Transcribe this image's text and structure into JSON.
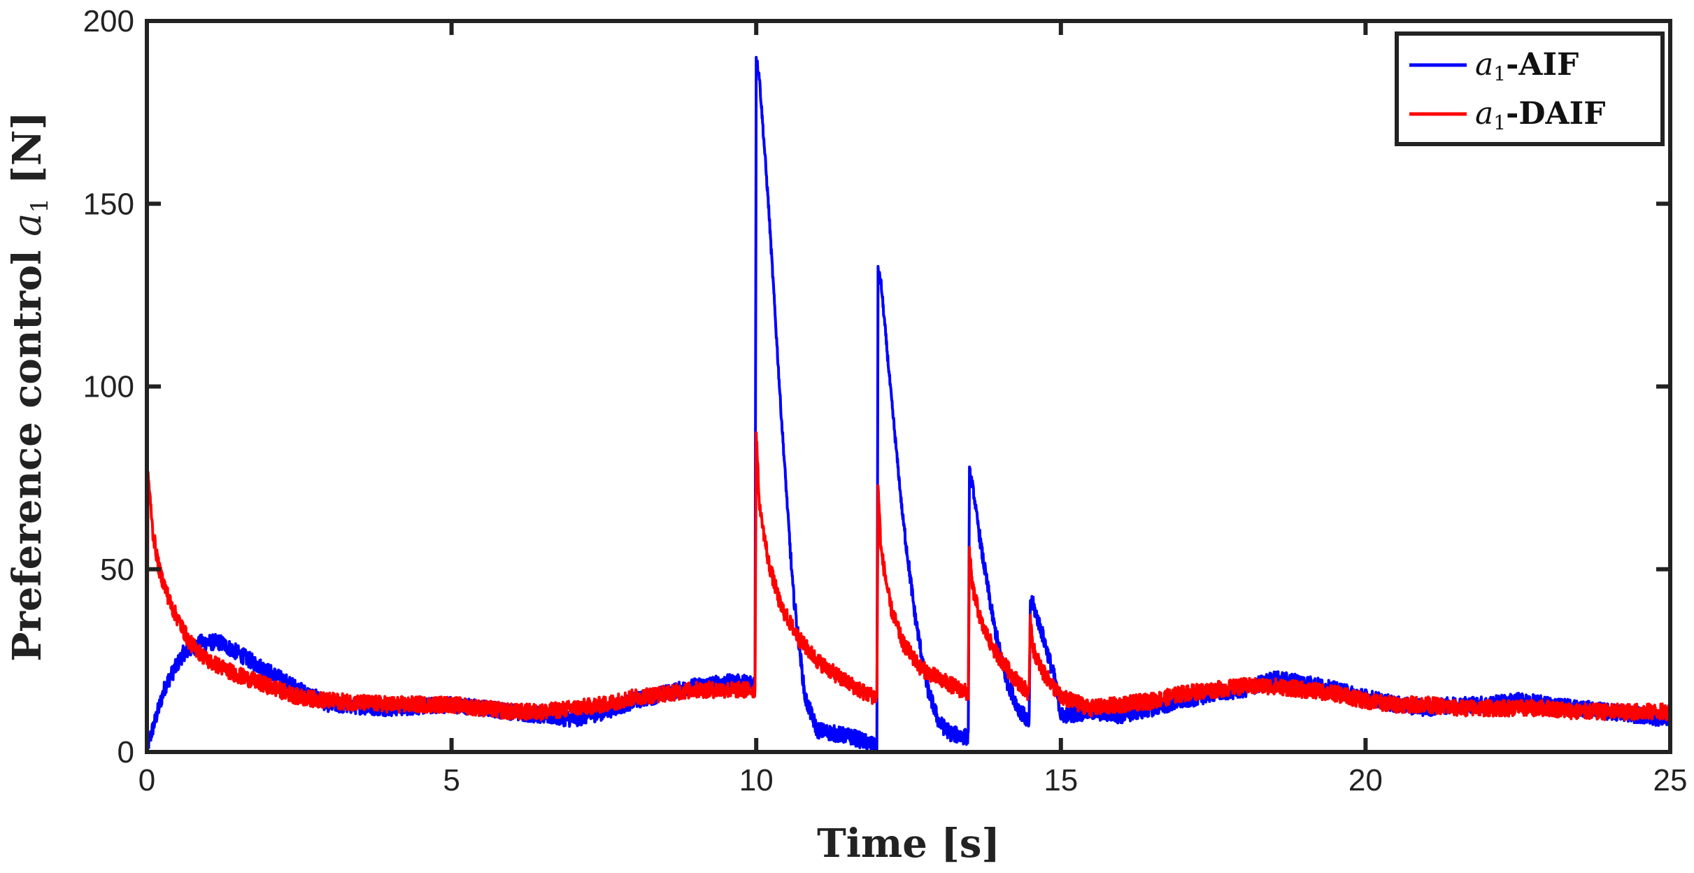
{
  "chart_data": {
    "type": "line",
    "title": "",
    "xlabel": "Time [s]",
    "ylabel_prefix": "Preference control ",
    "ylabel_var": "a",
    "ylabel_sub": "1",
    "ylabel_suffix": " [N]",
    "xlim": [
      0,
      25
    ],
    "ylim": [
      0,
      200
    ],
    "xticks": [
      0,
      5,
      10,
      15,
      20,
      25
    ],
    "yticks": [
      0,
      50,
      100,
      150,
      200
    ],
    "grid": false,
    "legend_position": "top-right",
    "noise_amplitude": 2.2,
    "series": [
      {
        "name_var": "a",
        "name_sub": "1",
        "name_suffix": "-AIF",
        "color": "#0000ff",
        "x": [
          0.0,
          0.02,
          0.3,
          0.6,
          0.9,
          1.2,
          1.5,
          2.0,
          2.5,
          3.0,
          4.0,
          5.0,
          5.5,
          6.0,
          6.5,
          7.0,
          7.5,
          8.0,
          8.5,
          9.0,
          9.5,
          9.98,
          10.0,
          10.05,
          10.2,
          10.4,
          10.6,
          10.8,
          11.0,
          11.3,
          11.6,
          11.9,
          11.98,
          12.0,
          12.05,
          12.2,
          12.4,
          12.6,
          12.8,
          13.0,
          13.2,
          13.48,
          13.5,
          13.55,
          13.7,
          13.9,
          14.1,
          14.3,
          14.48,
          14.5,
          14.55,
          14.7,
          14.9,
          15.0,
          15.5,
          16.0,
          16.5,
          17.0,
          17.5,
          18.0,
          18.5,
          19.0,
          19.5,
          20.0,
          20.5,
          21.0,
          21.5,
          22.0,
          22.5,
          23.0,
          23.5,
          24.0,
          24.5,
          25.0
        ],
        "y": [
          0,
          2,
          18,
          27,
          30,
          30,
          27,
          22,
          17,
          13,
          12,
          13,
          12,
          11,
          10,
          9,
          11,
          14,
          16,
          18,
          19,
          19,
          190,
          185,
          150,
          95,
          45,
          15,
          6,
          5,
          4,
          2,
          1,
          132,
          128,
          100,
          65,
          38,
          18,
          8,
          5,
          4,
          77,
          73,
          55,
          35,
          20,
          12,
          8,
          42,
          40,
          32,
          20,
          10,
          11,
          10,
          12,
          14,
          16,
          17,
          20,
          19,
          17,
          15,
          13,
          12,
          13,
          13,
          14,
          13,
          12,
          11,
          10,
          9
        ]
      },
      {
        "name_var": "a",
        "name_sub": "1",
        "name_suffix": "-DAIF",
        "color": "#ff0000",
        "x": [
          0.0,
          0.02,
          0.1,
          0.2,
          0.4,
          0.7,
          1.0,
          1.5,
          2.0,
          2.5,
          3.0,
          4.0,
          5.0,
          5.5,
          6.0,
          6.5,
          7.0,
          7.5,
          8.0,
          8.5,
          9.0,
          9.5,
          9.98,
          10.0,
          10.05,
          10.2,
          10.4,
          10.7,
          11.0,
          11.4,
          11.8,
          11.98,
          12.0,
          12.05,
          12.2,
          12.4,
          12.7,
          13.0,
          13.48,
          13.5,
          13.55,
          13.7,
          13.9,
          14.2,
          14.48,
          14.5,
          14.55,
          14.7,
          15.0,
          15.5,
          16.0,
          16.5,
          17.0,
          17.5,
          18.0,
          18.5,
          19.0,
          19.5,
          20.0,
          20.5,
          21.0,
          21.5,
          22.0,
          22.5,
          23.0,
          23.5,
          24.0,
          24.5,
          25.0
        ],
        "y": [
          0,
          76,
          60,
          50,
          40,
          30,
          25,
          21,
          18,
          15,
          14,
          13,
          13,
          12,
          11,
          11,
          12,
          13,
          15,
          16,
          17,
          17,
          17,
          88,
          68,
          52,
          40,
          31,
          25,
          20,
          16,
          15,
          73,
          55,
          40,
          30,
          23,
          20,
          16,
          54,
          45,
          35,
          28,
          21,
          16,
          37,
          28,
          22,
          15,
          12,
          13,
          14,
          16,
          17,
          18,
          18,
          17,
          16,
          14,
          13,
          13,
          12,
          12,
          12,
          12,
          11,
          11,
          11,
          11
        ]
      }
    ]
  }
}
